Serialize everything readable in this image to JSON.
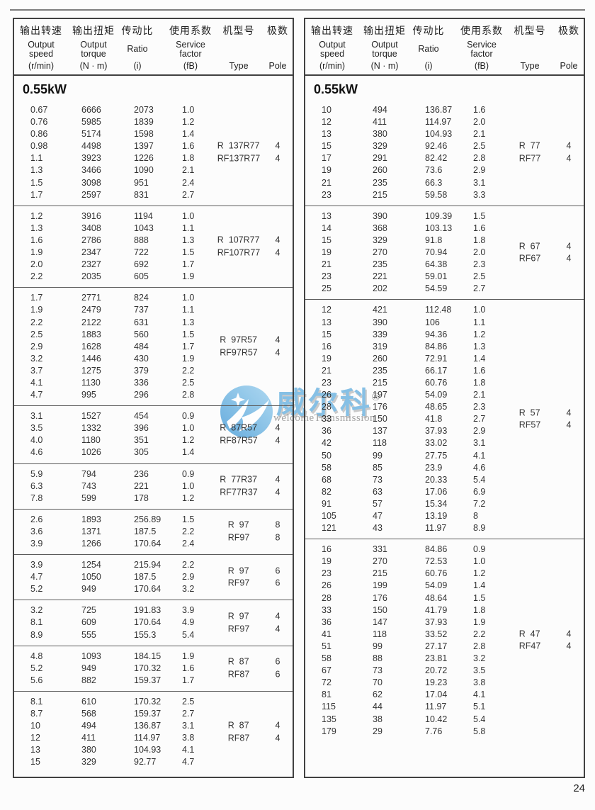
{
  "page": {
    "number": "24"
  },
  "columns": [
    {
      "zh": "输出转速",
      "en": [
        "Output",
        "speed"
      ],
      "unit": "(r/min)"
    },
    {
      "zh": "输出扭矩",
      "en": [
        "Output",
        "torque"
      ],
      "unit": "(N · m)"
    },
    {
      "zh": "传动比",
      "en": [
        "Ratio"
      ],
      "unit": "(i)"
    },
    {
      "zh": "使用系数",
      "en": [
        "Service",
        "factor"
      ],
      "unit": "(fB)"
    },
    {
      "zh": "机型号",
      "en": [],
      "unit": "Type"
    },
    {
      "zh": "极数",
      "en": [],
      "unit": "Pole"
    }
  ],
  "tables": [
    {
      "section_title": "0.55kW",
      "blocks": [
        {
          "rows": [
            [
              "0.67",
              "6666",
              "2073",
              "1.0"
            ],
            [
              "0.76",
              "5985",
              "1839",
              "1.2"
            ],
            [
              "0.86",
              "5174",
              "1598",
              "1.4"
            ],
            [
              "0.98",
              "4498",
              "1397",
              "1.6"
            ],
            [
              "1.1",
              "3923",
              "1226",
              "1.8"
            ],
            [
              "1.3",
              "3466",
              "1090",
              "2.1"
            ],
            [
              "1.5",
              "3098",
              "951",
              "2.4"
            ],
            [
              "1.7",
              "2597",
              "831",
              "2.7"
            ]
          ],
          "types": [
            "R  137R77",
            "RF137R77"
          ],
          "poles": [
            "4",
            "4"
          ]
        },
        {
          "rows": [
            [
              "1.2",
              "3916",
              "1194",
              "1.0"
            ],
            [
              "1.3",
              "3408",
              "1043",
              "1.1"
            ],
            [
              "1.6",
              "2786",
              "888",
              "1.3"
            ],
            [
              "1.9",
              "2347",
              "722",
              "1.5"
            ],
            [
              "2.0",
              "2327",
              "692",
              "1.7"
            ],
            [
              "2.2",
              "2035",
              "605",
              "1.9"
            ]
          ],
          "types": [
            "R  107R77",
            "RF107R77"
          ],
          "poles": [
            "4",
            "4"
          ]
        },
        {
          "rows": [
            [
              "1.7",
              "2771",
              "824",
              "1.0"
            ],
            [
              "1.9",
              "2479",
              "737",
              "1.1"
            ],
            [
              "2.2",
              "2122",
              "631",
              "1.3"
            ],
            [
              "2.5",
              "1883",
              "560",
              "1.5"
            ],
            [
              "2.9",
              "1628",
              "484",
              "1.7"
            ],
            [
              "3.2",
              "1446",
              "430",
              "1.9"
            ],
            [
              "3.7",
              "1275",
              "379",
              "2.2"
            ],
            [
              "4.1",
              "1130",
              "336",
              "2.5"
            ],
            [
              "4.7",
              "995",
              "296",
              "2.8"
            ]
          ],
          "types": [
            "R  97R57",
            "RF97R57"
          ],
          "poles": [
            "4",
            "4"
          ]
        },
        {
          "rows": [
            [
              "3.1",
              "1527",
              "454",
              "0.9"
            ],
            [
              "3.5",
              "1332",
              "396",
              "1.0"
            ],
            [
              "4.0",
              "1180",
              "351",
              "1.2"
            ],
            [
              "4.6",
              "1026",
              "305",
              "1.4"
            ]
          ],
          "types": [
            "R  87R57",
            "RF87R57"
          ],
          "poles": [
            "4",
            "4"
          ]
        },
        {
          "rows": [
            [
              "5.9",
              "794",
              "236",
              "0.9"
            ],
            [
              "6.3",
              "743",
              "221",
              "1.0"
            ],
            [
              "7.8",
              "599",
              "178",
              "1.2"
            ]
          ],
          "types": [
            "R  77R37",
            "RF77R37"
          ],
          "poles": [
            "4",
            "4"
          ]
        },
        {
          "rows": [
            [
              "2.6",
              "1893",
              "256.89",
              "1.5"
            ],
            [
              "3.6",
              "1371",
              "187.5",
              "2.2"
            ],
            [
              "3.9",
              "1266",
              "170.64",
              "2.4"
            ]
          ],
          "types": [
            "R  97",
            "RF97"
          ],
          "poles": [
            "8",
            "8"
          ]
        },
        {
          "rows": [
            [
              "3.9",
              "1254",
              "215.94",
              "2.2"
            ],
            [
              "4.7",
              "1050",
              "187.5",
              "2.9"
            ],
            [
              "5.2",
              "949",
              "170.64",
              "3.2"
            ]
          ],
          "types": [
            "R  97",
            "RF97"
          ],
          "poles": [
            "6",
            "6"
          ]
        },
        {
          "rows": [
            [
              "3.2",
              "725",
              "191.83",
              "3.9"
            ],
            [
              "8.1",
              "609",
              "170.64",
              "4.9"
            ],
            [
              "8.9",
              "555",
              "155.3",
              "5.4"
            ]
          ],
          "types": [
            "R  97",
            "RF97"
          ],
          "poles": [
            "4",
            "4"
          ]
        },
        {
          "rows": [
            [
              "4.8",
              "1093",
              "184.15",
              "1.9"
            ],
            [
              "5.2",
              "949",
              "170.32",
              "1.6"
            ],
            [
              "5.6",
              "882",
              "159.37",
              "1.7"
            ]
          ],
          "types": [
            "R  87",
            "RF87"
          ],
          "poles": [
            "6",
            "6"
          ]
        },
        {
          "rows": [
            [
              "8.1",
              "610",
              "170.32",
              "2.5"
            ],
            [
              "8.7",
              "568",
              "159.37",
              "2.7"
            ],
            [
              "10",
              "494",
              "136.87",
              "3.1"
            ],
            [
              "12",
              "411",
              "114.97",
              "3.8"
            ],
            [
              "13",
              "380",
              "104.93",
              "4.1"
            ],
            [
              "15",
              "329",
              "92.77",
              "4.7"
            ]
          ],
          "types": [
            "R  87",
            "RF87"
          ],
          "poles": [
            "4",
            "4"
          ]
        }
      ]
    },
    {
      "section_title": "0.55kW",
      "blocks": [
        {
          "rows": [
            [
              "10",
              "494",
              "136.87",
              "1.6"
            ],
            [
              "12",
              "411",
              "114.97",
              "2.0"
            ],
            [
              "13",
              "380",
              "104.93",
              "2.1"
            ],
            [
              "15",
              "329",
              "92.46",
              "2.5"
            ],
            [
              "17",
              "291",
              "82.42",
              "2.8"
            ],
            [
              "19",
              "260",
              "73.6",
              "2.9"
            ],
            [
              "21",
              "235",
              "66.3",
              "3.1"
            ],
            [
              "23",
              "215",
              "59.58",
              "3.3"
            ]
          ],
          "types": [
            "R  77",
            "RF77"
          ],
          "poles": [
            "4",
            "4"
          ]
        },
        {
          "rows": [
            [
              "13",
              "390",
              "109.39",
              "1.5"
            ],
            [
              "14",
              "368",
              "103.13",
              "1.6"
            ],
            [
              "15",
              "329",
              "91.8",
              "1.8"
            ],
            [
              "19",
              "270",
              "70.94",
              "2.0"
            ],
            [
              "21",
              "235",
              "64.38",
              "2.3"
            ],
            [
              "23",
              "221",
              "59.01",
              "2.5"
            ],
            [
              "25",
              "202",
              "54.59",
              "2.7"
            ]
          ],
          "types": [
            "R  67",
            "RF67"
          ],
          "poles": [
            "4",
            "4"
          ]
        },
        {
          "rows": [
            [
              "12",
              "421",
              "112.48",
              "1.0"
            ],
            [
              "13",
              "390",
              "106",
              "1.1"
            ],
            [
              "15",
              "339",
              "94.36",
              "1.2"
            ],
            [
              "16",
              "319",
              "84.86",
              "1.3"
            ],
            [
              "19",
              "260",
              "72.91",
              "1.4"
            ],
            [
              "21",
              "235",
              "66.17",
              "1.6"
            ],
            [
              "23",
              "215",
              "60.76",
              "1.8"
            ],
            [
              "26",
              "197",
              "54.09",
              "2.1"
            ],
            [
              "28",
              "176",
              "48.65",
              "2.3"
            ],
            [
              "33",
              "150",
              "41.8",
              "2.7"
            ],
            [
              "36",
              "137",
              "37.93",
              "2.9"
            ],
            [
              "42",
              "118",
              "33.02",
              "3.1"
            ],
            [
              "50",
              "99",
              "27.75",
              "4.1"
            ],
            [
              "58",
              "85",
              "23.9",
              "4.6"
            ],
            [
              "68",
              "73",
              "20.33",
              "5.4"
            ],
            [
              "82",
              "63",
              "17.06",
              "6.9"
            ],
            [
              "91",
              "57",
              "15.34",
              "7.2"
            ],
            [
              "105",
              "47",
              "13.19",
              "8"
            ],
            [
              "121",
              "43",
              "11.97",
              "8.9"
            ]
          ],
          "types": [
            "R  57",
            "RF57"
          ],
          "poles": [
            "4",
            "4"
          ]
        },
        {
          "rows": [
            [
              "16",
              "331",
              "84.86",
              "0.9"
            ],
            [
              "19",
              "270",
              "72.53",
              "1.0"
            ],
            [
              "23",
              "215",
              "60.76",
              "1.2"
            ],
            [
              "26",
              "199",
              "54.09",
              "1.4"
            ],
            [
              "28",
              "176",
              "48.64",
              "1.5"
            ],
            [
              "33",
              "150",
              "41.79",
              "1.8"
            ],
            [
              "36",
              "147",
              "37.93",
              "1.9"
            ],
            [
              "41",
              "118",
              "33.52",
              "2.2"
            ],
            [
              "51",
              "99",
              "27.17",
              "2.8"
            ],
            [
              "58",
              "88",
              "23.81",
              "3.2"
            ],
            [
              "67",
              "73",
              "20.72",
              "3.5"
            ],
            [
              "72",
              "70",
              "19.23",
              "3.8"
            ],
            [
              "81",
              "62",
              "17.04",
              "4.1"
            ],
            [
              "115",
              "44",
              "11.97",
              "5.1"
            ],
            [
              "135",
              "38",
              "10.42",
              "5.4"
            ],
            [
              "179",
              "29",
              "7.76",
              "5.8"
            ]
          ],
          "types": [
            "R  47",
            "RF47"
          ],
          "poles": [
            "4",
            "4"
          ]
        }
      ]
    }
  ],
  "watermark": {
    "zh": "威尔科",
    "reg": "®",
    "en": "welcomeTransmission",
    "blue": "#7cbbe4",
    "gray": "#9b9b9b"
  }
}
